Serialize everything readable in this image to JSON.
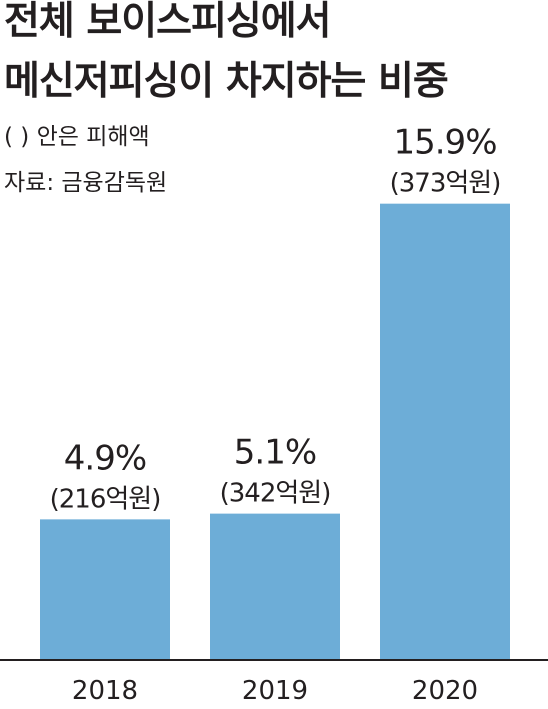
{
  "title_lines": [
    "전체 보이스피싱에서",
    "메신저피싱이 차지하는 비중"
  ],
  "legend_note": "(   ) 안은 피해액",
  "source": "자료: 금융감독원",
  "colors": {
    "bar": "#6dadd7",
    "baseline": "#231f20",
    "text": "#231f20"
  },
  "chart_data": {
    "type": "bar",
    "categories": [
      "2018",
      "2019",
      "2020"
    ],
    "values": [
      4.9,
      5.1,
      15.9
    ],
    "value_labels": [
      "4.9%",
      "5.1%",
      "15.9%"
    ],
    "amount_labels": [
      "(216억원)",
      "(342억원)",
      "(373억원)"
    ],
    "unit": "%",
    "ylim": [
      0,
      17
    ],
    "grid": false,
    "legend": "none"
  }
}
